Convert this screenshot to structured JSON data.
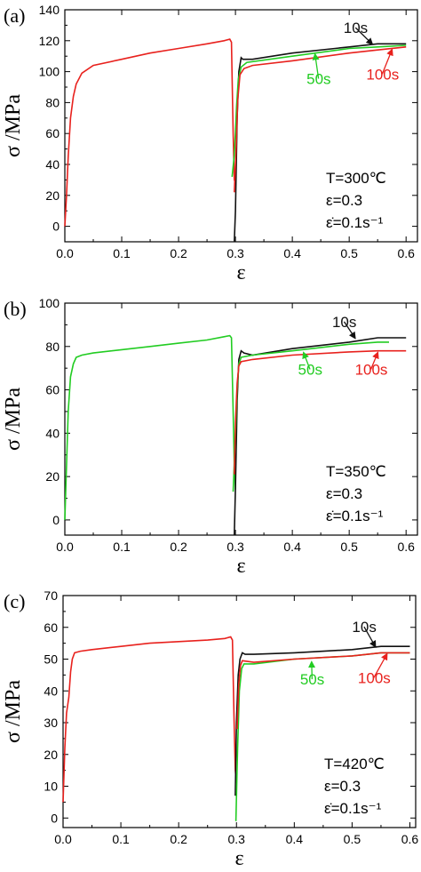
{
  "chart_data": [
    {
      "type": "line",
      "panel_label": "(a)",
      "xlabel": "ε",
      "ylabel": "σ /MPa",
      "xlim": [
        0,
        0.62
      ],
      "ylim": [
        -10,
        140
      ],
      "xticks": [
        0.0,
        0.1,
        0.2,
        0.3,
        0.4,
        0.5,
        0.6
      ],
      "xtick_labels": [
        "0.0",
        "0.1",
        "0.2",
        "0.3",
        "0.4",
        "0.5",
        "0.6"
      ],
      "yticks": [
        0,
        20,
        40,
        60,
        80,
        100,
        120,
        140
      ],
      "ytick_labels": [
        "0",
        "20",
        "40",
        "60",
        "80",
        "100",
        "120",
        "140"
      ],
      "conditions": [
        "T=300℃",
        "ε=0.3",
        "ε̇=0.1s⁻¹"
      ],
      "colors": {
        "first_stage": "#e8211d"
      },
      "first_stage": [
        [
          0.0,
          0
        ],
        [
          0.003,
          20
        ],
        [
          0.006,
          45
        ],
        [
          0.01,
          70
        ],
        [
          0.015,
          84
        ],
        [
          0.02,
          92
        ],
        [
          0.03,
          99
        ],
        [
          0.05,
          104
        ],
        [
          0.1,
          108
        ],
        [
          0.15,
          112
        ],
        [
          0.2,
          115
        ],
        [
          0.25,
          118
        ],
        [
          0.28,
          120
        ],
        [
          0.29,
          121
        ],
        [
          0.293,
          119
        ],
        [
          0.296,
          60
        ],
        [
          0.298,
          30
        ],
        [
          0.3,
          28
        ]
      ],
      "series": [
        {
          "name": "10s",
          "color": "#111111",
          "points": [
            [
              0.298,
              -10
            ],
            [
              0.3,
              10
            ],
            [
              0.303,
              70
            ],
            [
              0.306,
              100
            ],
            [
              0.31,
              109
            ],
            [
              0.313,
              108
            ],
            [
              0.33,
              108
            ],
            [
              0.4,
              112
            ],
            [
              0.5,
              116
            ],
            [
              0.55,
              118
            ],
            [
              0.6,
              118
            ]
          ]
        },
        {
          "name": "50s",
          "color": "#22cc22",
          "points": [
            [
              0.294,
              32
            ],
            [
              0.298,
              46
            ],
            [
              0.302,
              78
            ],
            [
              0.305,
              95
            ],
            [
              0.31,
              103
            ],
            [
              0.32,
              106
            ],
            [
              0.4,
              110
            ],
            [
              0.5,
              115
            ],
            [
              0.55,
              116
            ],
            [
              0.6,
              117
            ]
          ]
        },
        {
          "name": "100s",
          "color": "#e8211d",
          "points": [
            [
              0.298,
              22
            ],
            [
              0.301,
              48
            ],
            [
              0.304,
              82
            ],
            [
              0.308,
              98
            ],
            [
              0.315,
              102
            ],
            [
              0.33,
              104
            ],
            [
              0.4,
              107
            ],
            [
              0.5,
              112
            ],
            [
              0.55,
              114
            ],
            [
              0.6,
              116
            ]
          ]
        }
      ],
      "annotations": [
        {
          "text": "10s",
          "color": "#111111",
          "x": 0.49,
          "y": 125,
          "arrow_to": [
            0.54,
            118
          ]
        },
        {
          "text": "50s",
          "color": "#22cc22",
          "x": 0.425,
          "y": 92,
          "arrow_to": [
            0.44,
            111
          ]
        },
        {
          "text": "100s",
          "color": "#e8211d",
          "x": 0.53,
          "y": 95,
          "arrow_to": [
            0.575,
            114
          ]
        }
      ]
    },
    {
      "type": "line",
      "panel_label": "(b)",
      "xlabel": "ε",
      "ylabel": "σ /MPa",
      "xlim": [
        0,
        0.62
      ],
      "ylim": [
        -7,
        100
      ],
      "xticks": [
        0.0,
        0.1,
        0.2,
        0.3,
        0.4,
        0.5,
        0.6
      ],
      "xtick_labels": [
        "0.0",
        "0.1",
        "0.2",
        "0.3",
        "0.4",
        "0.5",
        "0.6"
      ],
      "yticks": [
        0,
        20,
        40,
        60,
        80,
        100
      ],
      "ytick_labels": [
        "0",
        "20",
        "40",
        "60",
        "80",
        "100"
      ],
      "conditions": [
        "T=350℃",
        "ε=0.3",
        "ε̇=0.1s⁻¹"
      ],
      "colors": {
        "first_stage": "#22cc22"
      },
      "first_stage": [
        [
          0.0,
          0
        ],
        [
          0.003,
          25
        ],
        [
          0.006,
          50
        ],
        [
          0.01,
          66
        ],
        [
          0.015,
          72
        ],
        [
          0.02,
          75
        ],
        [
          0.03,
          76
        ],
        [
          0.05,
          77
        ],
        [
          0.1,
          78.5
        ],
        [
          0.15,
          80
        ],
        [
          0.2,
          81.5
        ],
        [
          0.25,
          83
        ],
        [
          0.28,
          84.5
        ],
        [
          0.29,
          85
        ],
        [
          0.293,
          84
        ],
        [
          0.296,
          50
        ],
        [
          0.298,
          25
        ],
        [
          0.3,
          14
        ]
      ],
      "series": [
        {
          "name": "10s",
          "color": "#111111",
          "points": [
            [
              0.298,
              -7
            ],
            [
              0.3,
              15
            ],
            [
              0.303,
              55
            ],
            [
              0.306,
              74
            ],
            [
              0.31,
              78
            ],
            [
              0.315,
              77
            ],
            [
              0.33,
              76
            ],
            [
              0.4,
              79
            ],
            [
              0.5,
              82
            ],
            [
              0.55,
              84
            ],
            [
              0.6,
              84
            ]
          ]
        },
        {
          "name": "50s",
          "color": "#22cc22",
          "points": [
            [
              0.296,
              13
            ],
            [
              0.3,
              40
            ],
            [
              0.303,
              60
            ],
            [
              0.306,
              72
            ],
            [
              0.31,
              75
            ],
            [
              0.33,
              76
            ],
            [
              0.4,
              78
            ],
            [
              0.5,
              81
            ],
            [
              0.55,
              82
            ],
            [
              0.57,
              82
            ]
          ]
        },
        {
          "name": "100s",
          "color": "#e8211d",
          "points": [
            [
              0.298,
              21
            ],
            [
              0.3,
              45
            ],
            [
              0.303,
              63
            ],
            [
              0.306,
              71
            ],
            [
              0.31,
              73
            ],
            [
              0.33,
              74
            ],
            [
              0.4,
              76
            ],
            [
              0.5,
              77.5
            ],
            [
              0.55,
              78
            ],
            [
              0.6,
              78
            ]
          ]
        }
      ],
      "annotations": [
        {
          "text": "10s",
          "color": "#111111",
          "x": 0.47,
          "y": 89,
          "arrow_to": [
            0.51,
            84
          ]
        },
        {
          "text": "50s",
          "color": "#22cc22",
          "x": 0.41,
          "y": 67,
          "arrow_to": [
            0.42,
            77
          ]
        },
        {
          "text": "100s",
          "color": "#e8211d",
          "x": 0.51,
          "y": 67,
          "arrow_to": [
            0.55,
            77
          ]
        }
      ]
    },
    {
      "type": "line",
      "panel_label": "(c)",
      "xlabel": "ε",
      "ylabel": "σ /MPa",
      "xlim": [
        0,
        0.61
      ],
      "ylim": [
        -3,
        70
      ],
      "xticks": [
        0.0,
        0.1,
        0.2,
        0.3,
        0.4,
        0.5,
        0.6
      ],
      "xtick_labels": [
        "0.0",
        "0.1",
        "0.2",
        "0.3",
        "0.4",
        "0.5",
        "0.6"
      ],
      "yticks": [
        0,
        10,
        20,
        30,
        40,
        50,
        60,
        70
      ],
      "ytick_labels": [
        "0",
        "10",
        "20",
        "30",
        "40",
        "50",
        "60",
        "70"
      ],
      "conditions": [
        "T=420℃",
        "ε=0.3",
        "ε̇=0.1s⁻¹"
      ],
      "colors": {
        "first_stage": "#e8211d"
      },
      "first_stage": [
        [
          0.0,
          5
        ],
        [
          0.003,
          22
        ],
        [
          0.006,
          33
        ],
        [
          0.01,
          38
        ],
        [
          0.013,
          46
        ],
        [
          0.016,
          50
        ],
        [
          0.02,
          52
        ],
        [
          0.03,
          52.5
        ],
        [
          0.05,
          53
        ],
        [
          0.1,
          54
        ],
        [
          0.15,
          55
        ],
        [
          0.2,
          55.5
        ],
        [
          0.25,
          56
        ],
        [
          0.28,
          56.5
        ],
        [
          0.29,
          57
        ],
        [
          0.293,
          56
        ],
        [
          0.296,
          30
        ],
        [
          0.298,
          15
        ],
        [
          0.3,
          11
        ]
      ],
      "series": [
        {
          "name": "10s",
          "color": "#111111",
          "points": [
            [
              0.298,
              7
            ],
            [
              0.3,
              30
            ],
            [
              0.303,
              45
            ],
            [
              0.306,
              50
            ],
            [
              0.31,
              52
            ],
            [
              0.315,
              51.5
            ],
            [
              0.33,
              51.5
            ],
            [
              0.4,
              52
            ],
            [
              0.5,
              53
            ],
            [
              0.55,
              54
            ],
            [
              0.6,
              54
            ]
          ]
        },
        {
          "name": "50s",
          "color": "#22cc22",
          "points": [
            [
              0.299,
              -1
            ],
            [
              0.302,
              22
            ],
            [
              0.305,
              40
            ],
            [
              0.309,
              47
            ],
            [
              0.313,
              48.5
            ],
            [
              0.33,
              48.5
            ],
            [
              0.4,
              50
            ],
            [
              0.5,
              51
            ],
            [
              0.55,
              52
            ],
            [
              0.6,
              52
            ]
          ]
        },
        {
          "name": "100s",
          "color": "#e8211d",
          "points": [
            [
              0.301,
              28
            ],
            [
              0.304,
              42
            ],
            [
              0.307,
              48
            ],
            [
              0.31,
              49.5
            ],
            [
              0.33,
              49
            ],
            [
              0.4,
              50
            ],
            [
              0.5,
              51
            ],
            [
              0.55,
              52
            ],
            [
              0.6,
              52
            ]
          ]
        }
      ],
      "annotations": [
        {
          "text": "10s",
          "color": "#111111",
          "x": 0.5,
          "y": 58.5,
          "arrow_to": [
            0.54,
            54
          ]
        },
        {
          "text": "50s",
          "color": "#22cc22",
          "x": 0.41,
          "y": 42,
          "arrow_to": [
            0.43,
            49
          ]
        },
        {
          "text": "100s",
          "color": "#e8211d",
          "x": 0.51,
          "y": 42.5,
          "arrow_to": [
            0.56,
            51.5
          ]
        }
      ]
    }
  ]
}
